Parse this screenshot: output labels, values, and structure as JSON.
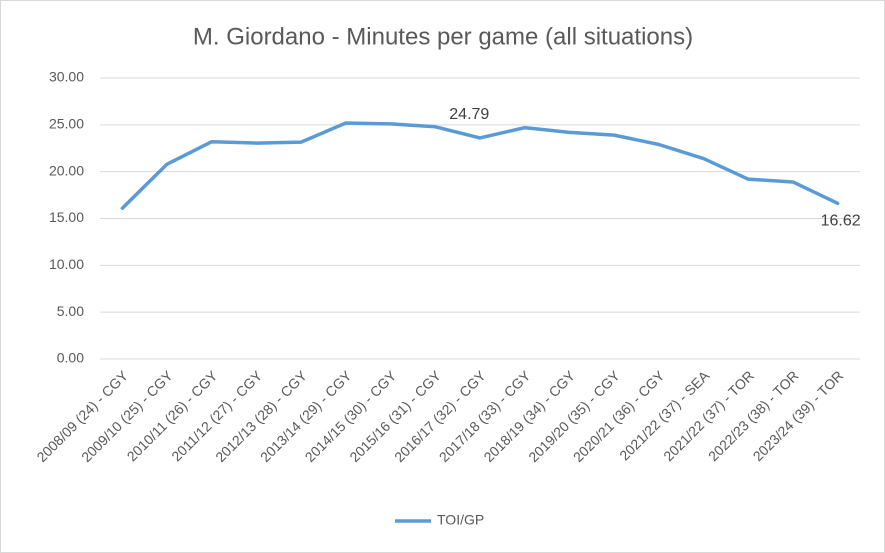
{
  "chart_data": {
    "type": "line",
    "title": "M. Giordano - Minutes per game (all situations)",
    "categories": [
      "2008/09 (24) - CGY",
      "2009/10 (25) - CGY",
      "2010/11 (26) - CGY",
      "2011/12 (27) - CGY",
      "2012/13 (28) - CGY",
      "2013/14 (29) - CGY",
      "2014/15 (30) - CGY",
      "2015/16 (31) - CGY",
      "2016/17 (32) - CGY",
      "2017/18 (33) - CGY",
      "2018/19 (34) - CGY",
      "2019/20 (35) - CGY",
      "2020/21 (36) - CGY",
      "2021/22 (37) - SEA",
      "2021/22 (37) - TOR",
      "2022/23 (38) - TOR",
      "2023/24 (39) - TOR"
    ],
    "series": [
      {
        "name": "TOI/GP",
        "color": "#5b9bd5",
        "values": [
          16.1,
          20.8,
          23.2,
          23.05,
          23.15,
          25.2,
          25.1,
          24.79,
          23.6,
          24.7,
          24.2,
          23.9,
          22.9,
          21.4,
          19.2,
          18.9,
          16.62
        ],
        "value_labels": [
          null,
          null,
          null,
          null,
          null,
          null,
          null,
          "24.79",
          null,
          null,
          null,
          null,
          null,
          null,
          null,
          null,
          "16.62"
        ]
      }
    ],
    "ylim": [
      0,
      30
    ],
    "yticks": [
      {
        "value": 0,
        "label": "0.00"
      },
      {
        "value": 5,
        "label": "5.00"
      },
      {
        "value": 10,
        "label": "10.00"
      },
      {
        "value": 15,
        "label": "15.00"
      },
      {
        "value": 20,
        "label": "20.00"
      },
      {
        "value": 25,
        "label": "25.00"
      },
      {
        "value": 30,
        "label": "30.00"
      }
    ],
    "grid": true
  }
}
